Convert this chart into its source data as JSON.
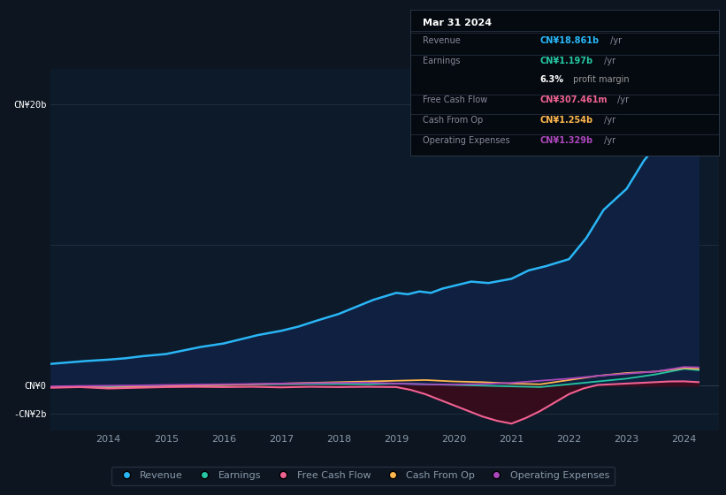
{
  "background_color": "#0d1520",
  "plot_bg_color": "#0d1a2a",
  "grid_color": "#1e2d3d",
  "text_color": "#8899aa",
  "ytick_labels": [
    "CN¥20b",
    "CN¥0",
    "-CN¥2b"
  ],
  "ytick_values": [
    20,
    0,
    -2
  ],
  "ylim": [
    -3.2,
    22.5
  ],
  "xlim": [
    2013.0,
    2024.6
  ],
  "xtick_labels": [
    "2014",
    "2015",
    "2016",
    "2017",
    "2018",
    "2019",
    "2020",
    "2021",
    "2022",
    "2023",
    "2024"
  ],
  "xtick_values": [
    2014,
    2015,
    2016,
    2017,
    2018,
    2019,
    2020,
    2021,
    2022,
    2023,
    2024
  ],
  "legend_items": [
    {
      "label": "Revenue",
      "color": "#29b6f6"
    },
    {
      "label": "Earnings",
      "color": "#26c6a2"
    },
    {
      "label": "Free Cash Flow",
      "color": "#f06292"
    },
    {
      "label": "Cash From Op",
      "color": "#ffb74d"
    },
    {
      "label": "Operating Expenses",
      "color": "#ab47bc"
    }
  ],
  "tooltip": {
    "title": "Mar 31 2024",
    "bg_color": "#050a10",
    "border_color": "#2a3545",
    "rows": [
      {
        "label": "Revenue",
        "value": "CN¥18.861b /yr",
        "value_color": "#29b6f6"
      },
      {
        "label": "Earnings",
        "value": "CN¥1.197b /yr",
        "value_color": "#26c6a2"
      },
      {
        "label": "",
        "value": "6.3% profit margin",
        "value_color": "#999999",
        "bold": "6.3%"
      },
      {
        "label": "Free Cash Flow",
        "value": "CN¥307.461m /yr",
        "value_color": "#f06292"
      },
      {
        "label": "Cash From Op",
        "value": "CN¥1.254b /yr",
        "value_color": "#ffb74d"
      },
      {
        "label": "Operating Expenses",
        "value": "CN¥1.329b /yr",
        "value_color": "#ab47bc"
      }
    ]
  },
  "revenue_x": [
    2013.0,
    2013.3,
    2013.6,
    2014.0,
    2014.3,
    2014.6,
    2015.0,
    2015.3,
    2015.6,
    2016.0,
    2016.3,
    2016.6,
    2017.0,
    2017.3,
    2017.6,
    2018.0,
    2018.3,
    2018.6,
    2019.0,
    2019.2,
    2019.4,
    2019.6,
    2019.8,
    2020.0,
    2020.3,
    2020.6,
    2021.0,
    2021.3,
    2021.6,
    2022.0,
    2022.3,
    2022.6,
    2023.0,
    2023.3,
    2023.6,
    2024.0,
    2024.25
  ],
  "revenue_y": [
    1.55,
    1.65,
    1.75,
    1.85,
    1.95,
    2.1,
    2.25,
    2.5,
    2.75,
    3.0,
    3.3,
    3.6,
    3.9,
    4.2,
    4.6,
    5.1,
    5.6,
    6.1,
    6.6,
    6.5,
    6.7,
    6.6,
    6.9,
    7.1,
    7.4,
    7.3,
    7.6,
    8.2,
    8.5,
    9.0,
    10.5,
    12.5,
    14.0,
    16.0,
    17.5,
    18.861,
    18.9
  ],
  "earnings_x": [
    2013.0,
    2013.5,
    2014.0,
    2014.5,
    2015.0,
    2015.5,
    2016.0,
    2016.5,
    2017.0,
    2017.5,
    2018.0,
    2018.5,
    2019.0,
    2019.5,
    2020.0,
    2020.5,
    2021.0,
    2021.5,
    2022.0,
    2022.5,
    2023.0,
    2023.5,
    2024.0,
    2024.25
  ],
  "earnings_y": [
    -0.1,
    -0.08,
    -0.1,
    -0.05,
    -0.05,
    0.02,
    0.05,
    0.08,
    0.1,
    0.12,
    0.12,
    0.1,
    0.15,
    0.1,
    0.05,
    0.0,
    -0.05,
    -0.1,
    0.1,
    0.3,
    0.5,
    0.8,
    1.197,
    1.1
  ],
  "fcf_x": [
    2013.0,
    2013.5,
    2014.0,
    2014.5,
    2015.0,
    2015.5,
    2016.0,
    2016.5,
    2017.0,
    2017.5,
    2018.0,
    2018.5,
    2019.0,
    2019.25,
    2019.5,
    2019.75,
    2020.0,
    2020.25,
    2020.5,
    2020.75,
    2021.0,
    2021.25,
    2021.5,
    2021.75,
    2022.0,
    2022.25,
    2022.5,
    2022.75,
    2023.0,
    2023.25,
    2023.5,
    2023.75,
    2024.0,
    2024.25
  ],
  "fcf_y": [
    -0.15,
    -0.1,
    -0.2,
    -0.15,
    -0.1,
    -0.08,
    -0.1,
    -0.08,
    -0.12,
    -0.08,
    -0.1,
    -0.08,
    -0.1,
    -0.3,
    -0.6,
    -1.0,
    -1.4,
    -1.8,
    -2.2,
    -2.5,
    -2.7,
    -2.3,
    -1.8,
    -1.2,
    -0.6,
    -0.2,
    0.05,
    0.1,
    0.15,
    0.2,
    0.25,
    0.3,
    0.307,
    0.25
  ],
  "cashop_x": [
    2013.0,
    2013.5,
    2014.0,
    2014.5,
    2015.0,
    2015.5,
    2016.0,
    2016.5,
    2017.0,
    2017.5,
    2018.0,
    2018.5,
    2019.0,
    2019.5,
    2020.0,
    2020.5,
    2021.0,
    2021.5,
    2022.0,
    2022.5,
    2023.0,
    2023.5,
    2024.0,
    2024.25
  ],
  "cashop_y": [
    -0.1,
    -0.08,
    -0.15,
    -0.1,
    -0.05,
    0.02,
    0.05,
    0.1,
    0.15,
    0.2,
    0.25,
    0.3,
    0.35,
    0.4,
    0.3,
    0.25,
    0.15,
    0.1,
    0.4,
    0.7,
    0.9,
    1.0,
    1.254,
    1.2
  ],
  "opex_x": [
    2013.0,
    2013.5,
    2014.0,
    2014.5,
    2015.0,
    2015.5,
    2016.0,
    2016.5,
    2017.0,
    2017.5,
    2018.0,
    2018.5,
    2019.0,
    2019.5,
    2020.0,
    2020.5,
    2021.0,
    2021.5,
    2022.0,
    2022.5,
    2023.0,
    2023.5,
    2024.0,
    2024.25
  ],
  "opex_y": [
    -0.05,
    -0.02,
    0.0,
    0.02,
    0.05,
    0.08,
    0.1,
    0.12,
    0.15,
    0.18,
    0.2,
    0.22,
    0.15,
    0.1,
    0.08,
    0.12,
    0.2,
    0.35,
    0.5,
    0.7,
    0.85,
    1.0,
    1.329,
    1.3
  ]
}
